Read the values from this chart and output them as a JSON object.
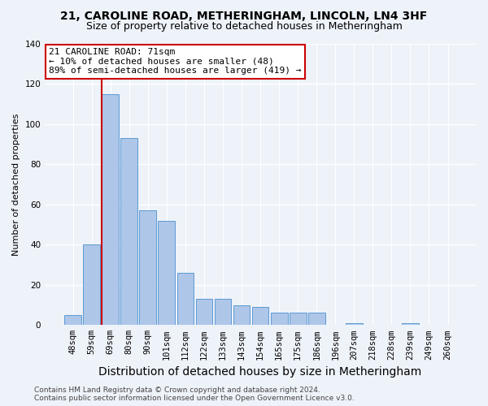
{
  "title": "21, CAROLINE ROAD, METHERINGHAM, LINCOLN, LN4 3HF",
  "subtitle": "Size of property relative to detached houses in Metheringham",
  "xlabel": "Distribution of detached houses by size in Metheringham",
  "ylabel": "Number of detached properties",
  "categories": [
    "48sqm",
    "59sqm",
    "69sqm",
    "80sqm",
    "90sqm",
    "101sqm",
    "112sqm",
    "122sqm",
    "133sqm",
    "143sqm",
    "154sqm",
    "165sqm",
    "175sqm",
    "186sqm",
    "196sqm",
    "207sqm",
    "218sqm",
    "228sqm",
    "239sqm",
    "249sqm",
    "260sqm"
  ],
  "values": [
    5,
    40,
    115,
    93,
    57,
    52,
    26,
    13,
    13,
    10,
    9,
    6,
    6,
    6,
    0,
    1,
    0,
    0,
    1,
    0,
    0
  ],
  "bar_color": "#aec6e8",
  "bar_edge_color": "#5b9bd5",
  "subject_line_idx": 2,
  "subject_line_color": "#cc0000",
  "annotation_line1": "21 CAROLINE ROAD: 71sqm",
  "annotation_line2": "← 10% of detached houses are smaller (48)",
  "annotation_line3": "89% of semi-detached houses are larger (419) →",
  "annotation_box_facecolor": "#ffffff",
  "annotation_box_edgecolor": "#cc0000",
  "footer_text": "Contains HM Land Registry data © Crown copyright and database right 2024.\nContains public sector information licensed under the Open Government Licence v3.0.",
  "ylim": [
    0,
    140
  ],
  "yticks": [
    0,
    20,
    40,
    60,
    80,
    100,
    120,
    140
  ],
  "bg_color": "#eef2f9",
  "grid_color": "#ffffff",
  "title_fontsize": 10,
  "subtitle_fontsize": 9,
  "xlabel_fontsize": 10,
  "ylabel_fontsize": 8,
  "tick_fontsize": 7.5,
  "footer_fontsize": 6.5,
  "annotation_fontsize": 8
}
